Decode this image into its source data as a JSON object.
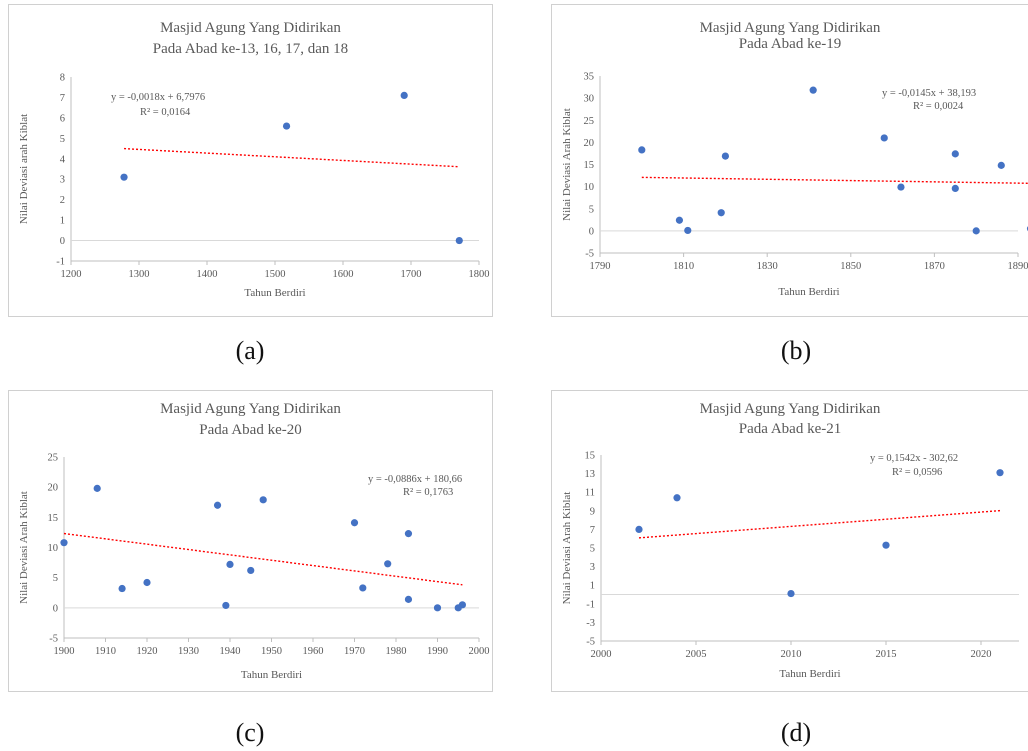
{
  "captions": [
    "(a)",
    "(b)",
    "(c)",
    "(d)"
  ],
  "chart_data": [
    {
      "type": "scatter",
      "title": [
        "Masjid Agung Yang Didirikan",
        "Pada Abad ke-13, 16, 17, dan 18"
      ],
      "xlabel": "Tahun Berdiri",
      "ylabel": "Nilai Deviasi arah Kiblat",
      "xlim": [
        1200,
        1800
      ],
      "ylim": [
        -1,
        8
      ],
      "xticks": [
        1200,
        1300,
        1400,
        1500,
        1600,
        1700,
        1800
      ],
      "yticks": [
        -1,
        0,
        1,
        2,
        3,
        4,
        5,
        6,
        7,
        8
      ],
      "points": [
        [
          1278,
          3.1
        ],
        [
          1517,
          5.6
        ],
        [
          1690,
          7.1
        ],
        [
          1771,
          0.0
        ]
      ],
      "trendline": {
        "slope": -0.0018,
        "intercept": 6.7976,
        "x_range": [
          1278,
          1771
        ]
      },
      "equation": "y = -0,0018x + 6,7976",
      "r2": "R² = 0,0164",
      "color": "#4472c4",
      "trend_color": "#ff0000"
    },
    {
      "type": "scatter",
      "title": [
        "Masjid Agung Yang Didirikan",
        "Pada Abad ke-19"
      ],
      "xlabel": "Tahun Berdiri",
      "ylabel": "Nilai Deviasi Arah Kiblat",
      "xlim": [
        1790,
        1890
      ],
      "ylim": [
        -5,
        35
      ],
      "xticks": [
        1790,
        1810,
        1830,
        1850,
        1870,
        1890
      ],
      "yticks": [
        -5,
        0,
        5,
        10,
        15,
        20,
        25,
        30,
        35
      ],
      "points": [
        [
          1800,
          18.3
        ],
        [
          1809,
          2.4
        ],
        [
          1811,
          0.1
        ],
        [
          1819,
          4.1
        ],
        [
          1820,
          16.9
        ],
        [
          1841,
          31.8
        ],
        [
          1858,
          21.0
        ],
        [
          1862,
          9.9
        ],
        [
          1875,
          17.4
        ],
        [
          1875,
          9.6
        ],
        [
          1880,
          0.0
        ],
        [
          1886,
          14.8
        ],
        [
          1893,
          0.5
        ]
      ],
      "trendline": {
        "slope": -0.0145,
        "intercept": 38.193,
        "x_range": [
          1800,
          1893
        ]
      },
      "equation": "y = -0,0145x + 38,193",
      "r2": "R² = 0,0024",
      "color": "#4472c4",
      "trend_color": "#ff0000"
    },
    {
      "type": "scatter",
      "title": [
        "Masjid Agung Yang Didirikan",
        "Pada Abad ke-20"
      ],
      "xlabel": "Tahun Berdiri",
      "ylabel": "Nilai Deviasi Arah Kiblat",
      "xlim": [
        1900,
        2000
      ],
      "ylim": [
        -5,
        25
      ],
      "xticks": [
        1900,
        1910,
        1920,
        1930,
        1940,
        1950,
        1960,
        1970,
        1980,
        1990,
        2000
      ],
      "yticks": [
        -5,
        0,
        5,
        10,
        15,
        20,
        25
      ],
      "points": [
        [
          1900,
          10.8
        ],
        [
          1908,
          19.8
        ],
        [
          1914,
          3.2
        ],
        [
          1920,
          4.2
        ],
        [
          1937,
          17.0
        ],
        [
          1939,
          0.4
        ],
        [
          1940,
          7.2
        ],
        [
          1945,
          6.2
        ],
        [
          1948,
          17.9
        ],
        [
          1970,
          14.1
        ],
        [
          1972,
          3.3
        ],
        [
          1978,
          7.3
        ],
        [
          1983,
          12.3
        ],
        [
          1983,
          1.4
        ],
        [
          1990,
          0.0
        ],
        [
          1995,
          0.0
        ],
        [
          1996,
          0.5
        ]
      ],
      "trendline": {
        "slope": -0.0886,
        "intercept": 180.66,
        "x_range": [
          1900,
          1996
        ]
      },
      "equation": "y = -0,0886x + 180,66",
      "r2": "R² = 0,1763",
      "color": "#4472c4",
      "trend_color": "#ff0000"
    },
    {
      "type": "scatter",
      "title": [
        "Masjid Agung Yang Didirikan",
        "Pada  Abad ke-21"
      ],
      "xlabel": "Tahun Berdiri",
      "ylabel": "Nilai Deviasi Arah Kiblat",
      "xlim": [
        2000,
        2022
      ],
      "ylim": [
        -5,
        15
      ],
      "xticks": [
        2000,
        2005,
        2010,
        2015,
        2020
      ],
      "yticks": [
        -5,
        -3,
        -1,
        1,
        3,
        5,
        7,
        9,
        11,
        13,
        15
      ],
      "points": [
        [
          2002,
          7.0
        ],
        [
          2004,
          10.4
        ],
        [
          2010,
          0.1
        ],
        [
          2015,
          5.3
        ],
        [
          2021,
          13.1
        ]
      ],
      "trendline": {
        "slope": 0.1542,
        "intercept": -302.62,
        "x_range": [
          2002,
          2021
        ]
      },
      "equation": "y = 0,1542x - 302,62",
      "r2": "R² = 0,0596",
      "color": "#4472c4",
      "trend_color": "#ff0000"
    }
  ]
}
